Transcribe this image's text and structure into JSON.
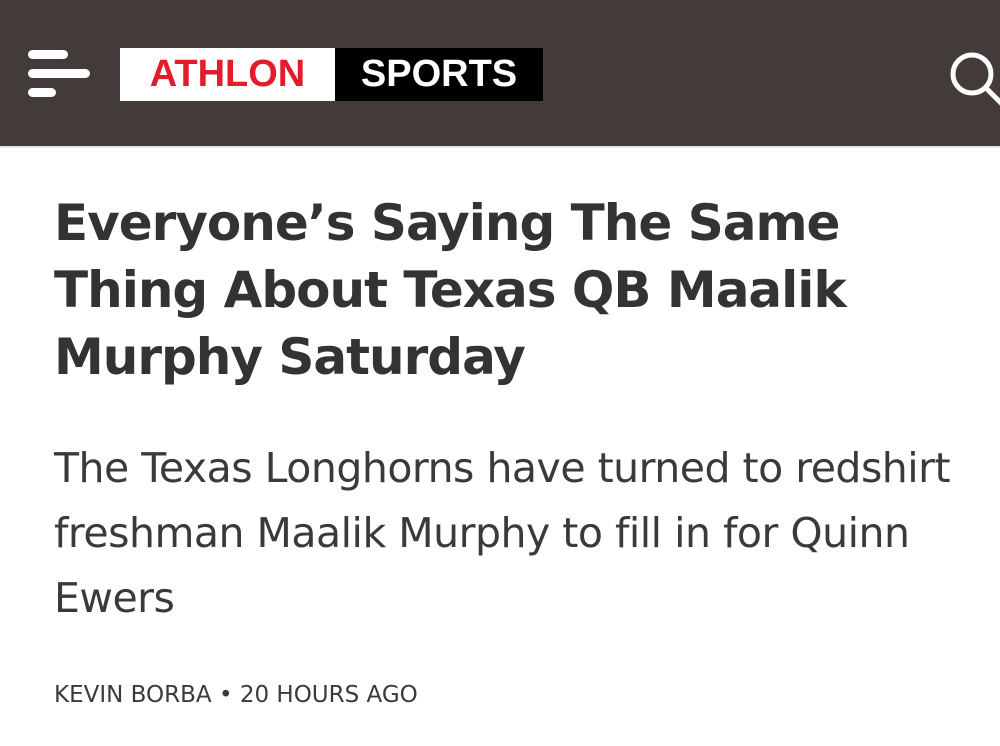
{
  "header": {
    "logo": {
      "part1": "ATHLON",
      "part2": "SPORTS"
    },
    "menu_icon": "hamburger-icon",
    "search_icon": "search-icon",
    "colors": {
      "background": "#433b3a",
      "brand_red": "#e21c2a"
    }
  },
  "article": {
    "title": "Everyone’s Saying The Same Thing About Texas QB Maalik Murphy Saturday",
    "subtitle": "The Texas Longhorns have turned to redshirt freshman Maalik Murphy to fill in for Quinn Ewers",
    "author": "Kevin Borba",
    "separator": "•",
    "time": "20 hours ago"
  }
}
